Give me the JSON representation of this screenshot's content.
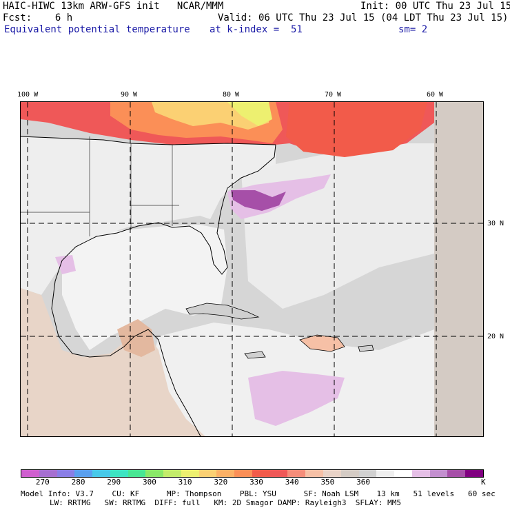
{
  "header": {
    "model_title": "HAIC-HIWC 13km ARW-GFS init   NCAR/MMM",
    "init_text": "Init: 00 UTC Thu 23 Jul 15",
    "fcst_text": "Fcst:    6 h",
    "valid_text": "Valid: 06 UTC Thu 23 Jul 15 (04 LDT Thu 23 Jul 15)",
    "field_name": "Equivalent potential temperature",
    "level_text": "at k-index =  51",
    "smooth_text": "sm= 2"
  },
  "map": {
    "lon_labels": [
      "100 W",
      "90 W",
      "80 W",
      "70 W",
      "60 W"
    ],
    "lat_labels": [
      "30 N",
      "20 N"
    ]
  },
  "colorbar": {
    "colors": [
      "#cf5fcf",
      "#a66fd1",
      "#8a7ee6",
      "#5aa0ef",
      "#48c9e9",
      "#3ee4c2",
      "#48e693",
      "#8ae868",
      "#c3ec6a",
      "#edf070",
      "#fbd073",
      "#fcb166",
      "#fb8f57",
      "#f25b4a",
      "#ef5858",
      "#f58d7a",
      "#f6c0a6",
      "#e9d3c7",
      "#d4cbc4",
      "#d0d0d0",
      "#efefef",
      "#ffffff",
      "#e5bfe6",
      "#c38fcf",
      "#a64fa8",
      "#800080"
    ],
    "tick_labels": [
      "270",
      "280",
      "290",
      "300",
      "310",
      "320",
      "330",
      "340",
      "350",
      "360"
    ],
    "unit": "K"
  },
  "model_info": {
    "line1": "Model Info: V3.7    CU: KF      MP: Thompson    PBL: YSU      SF: Noah LSM    13 km   51 levels   60 sec",
    "line2": "LW: RRTMG   SW: RRTMG  DIFF: full   KM: 2D Smagor DAMP: Rayleigh3  SFLAY: MM5"
  }
}
